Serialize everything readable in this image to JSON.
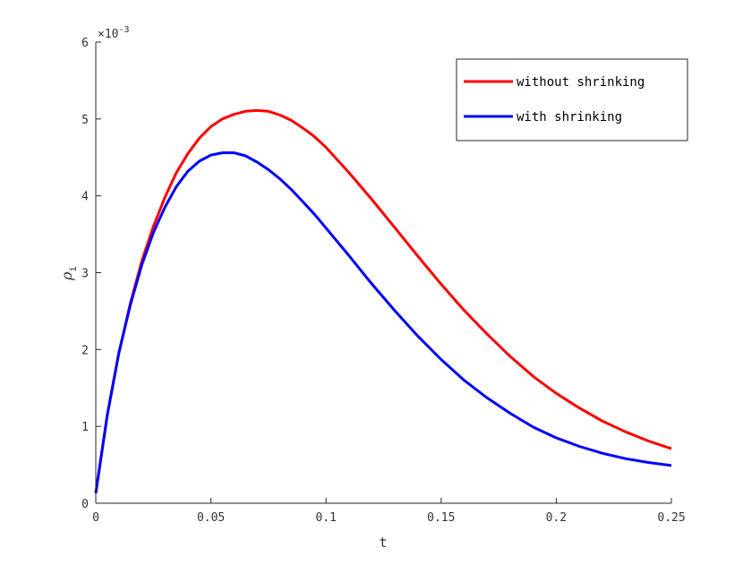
{
  "chart_data": {
    "type": "line",
    "title": "",
    "xlabel": "t",
    "ylabel": {
      "symbol": "ρ",
      "subscript": "i"
    },
    "y_exponent_label": {
      "base": "×10",
      "power": "-3"
    },
    "xlim": [
      0,
      0.25
    ],
    "ylim": [
      0,
      6
    ],
    "xticks": [
      0,
      0.05,
      0.1,
      0.15,
      0.2,
      0.25
    ],
    "xtick_labels": [
      "0",
      "0.05",
      "0.1",
      "0.15",
      "0.2",
      "0.25"
    ],
    "yticks": [
      0,
      1,
      2,
      3,
      4,
      5,
      6
    ],
    "ytick_labels": [
      "0",
      "1",
      "2",
      "3",
      "4",
      "5",
      "6"
    ],
    "grid": false,
    "legend_position": "top-right",
    "series": [
      {
        "name": "without shrinking",
        "color": "#ff0000",
        "x": [
          0,
          0.005,
          0.01,
          0.015,
          0.02,
          0.025,
          0.03,
          0.035,
          0.04,
          0.045,
          0.05,
          0.055,
          0.06,
          0.065,
          0.07,
          0.075,
          0.08,
          0.085,
          0.09,
          0.095,
          0.1,
          0.11,
          0.12,
          0.13,
          0.14,
          0.15,
          0.16,
          0.17,
          0.18,
          0.19,
          0.2,
          0.21,
          0.22,
          0.23,
          0.24,
          0.25
        ],
        "y": [
          0.13,
          1.15,
          1.95,
          2.6,
          3.15,
          3.6,
          3.98,
          4.3,
          4.55,
          4.75,
          4.9,
          5.0,
          5.06,
          5.1,
          5.11,
          5.1,
          5.05,
          4.98,
          4.88,
          4.77,
          4.63,
          4.3,
          3.95,
          3.58,
          3.21,
          2.85,
          2.51,
          2.2,
          1.91,
          1.65,
          1.43,
          1.24,
          1.07,
          0.93,
          0.81,
          0.71
        ]
      },
      {
        "name": "with shrinking",
        "color": "#0000ff",
        "x": [
          0,
          0.005,
          0.01,
          0.015,
          0.02,
          0.025,
          0.03,
          0.035,
          0.04,
          0.045,
          0.05,
          0.055,
          0.06,
          0.065,
          0.07,
          0.075,
          0.08,
          0.085,
          0.09,
          0.095,
          0.1,
          0.11,
          0.12,
          0.13,
          0.14,
          0.15,
          0.16,
          0.17,
          0.18,
          0.19,
          0.2,
          0.21,
          0.22,
          0.23,
          0.24,
          0.25
        ],
        "y": [
          0.13,
          1.15,
          1.95,
          2.58,
          3.1,
          3.52,
          3.85,
          4.12,
          4.32,
          4.45,
          4.53,
          4.56,
          4.56,
          4.52,
          4.44,
          4.34,
          4.22,
          4.08,
          3.92,
          3.76,
          3.58,
          3.22,
          2.85,
          2.5,
          2.17,
          1.87,
          1.6,
          1.37,
          1.17,
          0.99,
          0.85,
          0.74,
          0.65,
          0.58,
          0.53,
          0.49
        ]
      }
    ]
  }
}
